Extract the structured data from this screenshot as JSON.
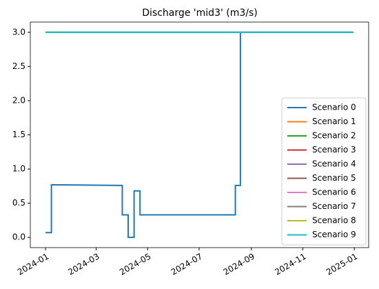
{
  "chart_data": {
    "type": "line",
    "title": "Discharge 'mid3' (m3/s)",
    "x": [
      "2024-01-01",
      "2024-01-08",
      "2024-01-08",
      "2024-04-01",
      "2024-04-01",
      "2024-04-08",
      "2024-04-08",
      "2024-04-15",
      "2024-04-15",
      "2024-04-22",
      "2024-04-22",
      "2024-08-13",
      "2024-08-13",
      "2024-08-19",
      "2024-08-19",
      "2024-12-31"
    ],
    "series": [
      {
        "name": "Scenario 0",
        "color": "#1f77b4",
        "values": [
          0.07,
          0.07,
          0.77,
          0.76,
          0.33,
          0.33,
          0.0,
          0.0,
          0.68,
          0.68,
          0.33,
          0.33,
          0.76,
          0.76,
          3.0,
          3.0
        ]
      },
      {
        "name": "Scenario 1",
        "color": "#ff7f0e",
        "values": [
          3.0,
          3.0,
          3.0,
          3.0,
          3.0,
          3.0,
          3.0,
          3.0,
          3.0,
          3.0,
          3.0,
          3.0,
          3.0,
          3.0,
          3.0,
          3.0
        ]
      },
      {
        "name": "Scenario 2",
        "color": "#2ca02c",
        "values": [
          3.0,
          3.0,
          3.0,
          3.0,
          3.0,
          3.0,
          3.0,
          3.0,
          3.0,
          3.0,
          3.0,
          3.0,
          3.0,
          3.0,
          3.0,
          3.0
        ]
      },
      {
        "name": "Scenario 3",
        "color": "#d62728",
        "values": [
          3.0,
          3.0,
          3.0,
          3.0,
          3.0,
          3.0,
          3.0,
          3.0,
          3.0,
          3.0,
          3.0,
          3.0,
          3.0,
          3.0,
          3.0,
          3.0
        ]
      },
      {
        "name": "Scenario 4",
        "color": "#9467bd",
        "values": [
          3.0,
          3.0,
          3.0,
          3.0,
          3.0,
          3.0,
          3.0,
          3.0,
          3.0,
          3.0,
          3.0,
          3.0,
          3.0,
          3.0,
          3.0,
          3.0
        ]
      },
      {
        "name": "Scenario 5",
        "color": "#8c564b",
        "values": [
          3.0,
          3.0,
          3.0,
          3.0,
          3.0,
          3.0,
          3.0,
          3.0,
          3.0,
          3.0,
          3.0,
          3.0,
          3.0,
          3.0,
          3.0,
          3.0
        ]
      },
      {
        "name": "Scenario 6",
        "color": "#e377c2",
        "values": [
          3.0,
          3.0,
          3.0,
          3.0,
          3.0,
          3.0,
          3.0,
          3.0,
          3.0,
          3.0,
          3.0,
          3.0,
          3.0,
          3.0,
          3.0,
          3.0
        ]
      },
      {
        "name": "Scenario 7",
        "color": "#7f7f7f",
        "values": [
          3.0,
          3.0,
          3.0,
          3.0,
          3.0,
          3.0,
          3.0,
          3.0,
          3.0,
          3.0,
          3.0,
          3.0,
          3.0,
          3.0,
          3.0,
          3.0
        ]
      },
      {
        "name": "Scenario 8",
        "color": "#bcbd22",
        "values": [
          3.0,
          3.0,
          3.0,
          3.0,
          3.0,
          3.0,
          3.0,
          3.0,
          3.0,
          3.0,
          3.0,
          3.0,
          3.0,
          3.0,
          3.0,
          3.0
        ]
      },
      {
        "name": "Scenario 9",
        "color": "#17becf",
        "values": [
          3.0,
          3.0,
          3.0,
          3.0,
          3.0,
          3.0,
          3.0,
          3.0,
          3.0,
          3.0,
          3.0,
          3.0,
          3.0,
          3.0,
          3.0,
          3.0
        ]
      }
    ],
    "xlim": [
      "2023-12-14",
      "2025-01-18"
    ],
    "xticks": [
      {
        "value": "2024-01-01",
        "label": "2024-01"
      },
      {
        "value": "2024-03-01",
        "label": "2024-03"
      },
      {
        "value": "2024-05-01",
        "label": "2024-05"
      },
      {
        "value": "2024-07-01",
        "label": "2024-07"
      },
      {
        "value": "2024-09-01",
        "label": "2024-09"
      },
      {
        "value": "2024-11-01",
        "label": "2024-11"
      },
      {
        "value": "2025-01-01",
        "label": "2025-01"
      }
    ],
    "ylim": [
      -0.15,
      3.15
    ],
    "yticks": [
      {
        "value": 0,
        "label": "0.0"
      },
      {
        "value": 0.5,
        "label": "0.5"
      },
      {
        "value": 1,
        "label": "1.0"
      },
      {
        "value": 1.5,
        "label": "1.5"
      },
      {
        "value": 2,
        "label": "2.0"
      },
      {
        "value": 2.5,
        "label": "2.5"
      },
      {
        "value": 3,
        "label": "3.0"
      }
    ],
    "legend": "lower right"
  }
}
